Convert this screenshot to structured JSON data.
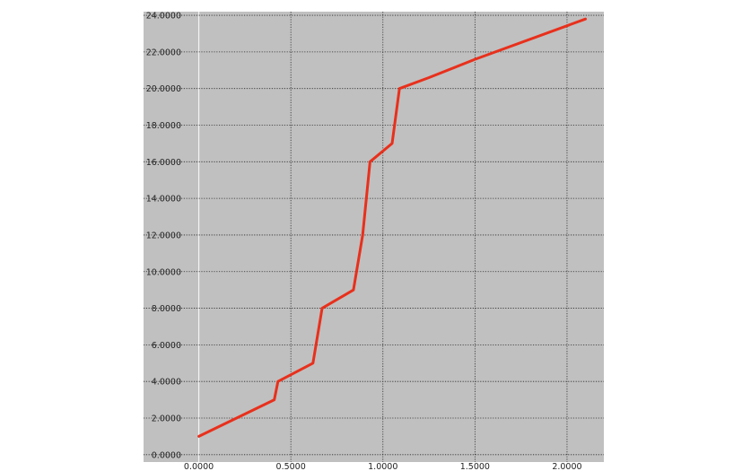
{
  "chart_data": {
    "type": "line",
    "title": "",
    "xlabel": "",
    "ylabel": "",
    "xlim": [
      -0.3,
      2.2
    ],
    "ylim": [
      -0.4,
      24.2
    ],
    "grid": true,
    "x_ticks": [
      0,
      0.5,
      1.0,
      1.5,
      2.0
    ],
    "x_tick_labels": [
      "0.0000",
      "0.5000",
      "1.0000",
      "1.5000",
      "2.0000"
    ],
    "y_ticks": [
      0,
      2,
      4,
      6,
      8,
      10,
      12,
      14,
      16,
      18,
      20,
      22,
      24
    ],
    "y_tick_labels": [
      "0.0000",
      "2.0000",
      "4.0000",
      "6.0000",
      "8.0000",
      "10.0000",
      "12.0000",
      "14.0000",
      "16.0000",
      "18.0000",
      "20.0000",
      "22.0000",
      "24.0000"
    ],
    "colors": {
      "plot_background": "#c0c0c0",
      "line": "#e8301c"
    },
    "series": [
      {
        "x": [
          0.0,
          0.41,
          0.43,
          0.62,
          0.67,
          0.84,
          0.89,
          0.93,
          1.05,
          1.07,
          1.09,
          1.25,
          1.5,
          2.1
        ],
        "y": [
          1.0,
          3.0,
          4.0,
          5.0,
          8.0,
          9.0,
          12.0,
          16.0,
          17.0,
          18.5,
          20.0,
          20.6,
          21.6,
          23.8
        ]
      }
    ]
  }
}
